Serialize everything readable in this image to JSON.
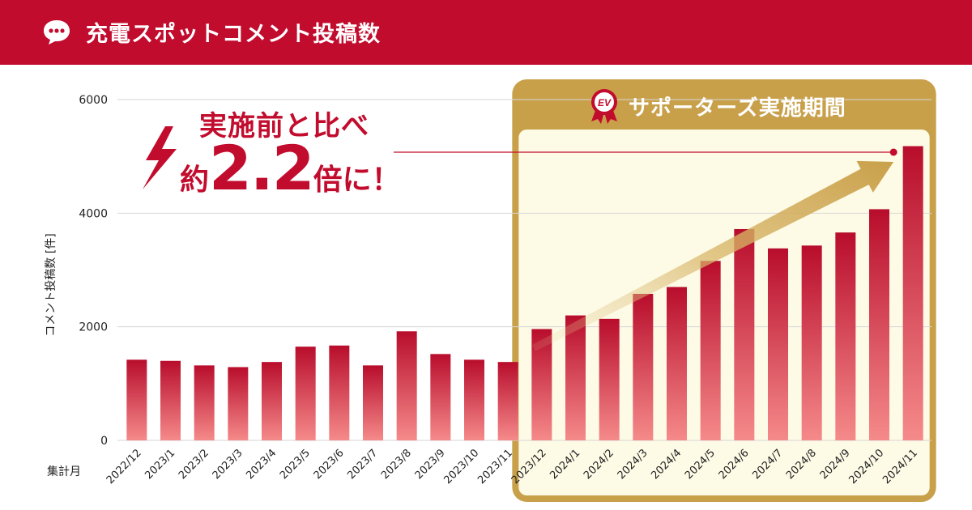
{
  "header": {
    "title": "充電スポットコメント投稿数",
    "icon": "speech-bubble-icon"
  },
  "callout": {
    "line1": "実施前と比べ",
    "prefix": "約",
    "multiplier": "2.2",
    "suffix": "倍に！",
    "icon": "lightning-bolt-icon"
  },
  "highlight": {
    "label": "サポーターズ実施期間",
    "badge_icon": "ev-badge-icon",
    "start_category": "2023/12",
    "end_category": "2024/11"
  },
  "colors": {
    "brand": "#c20c2e",
    "bar_top": "#b80d2c",
    "bar_bottom": "#f58a8a",
    "gold": "#c9a04a",
    "highlight_bg": "#fdfbe6"
  },
  "chart_data": {
    "type": "bar",
    "title": "充電スポットコメント投稿数",
    "ylabel": "コメント投稿数 [件]",
    "xlabel": "集計月",
    "ylim": [
      0,
      6000
    ],
    "yticks": [
      0,
      2000,
      4000,
      6000
    ],
    "grid": true,
    "categories": [
      "2022/12",
      "2023/1",
      "2023/2",
      "2023/3",
      "2023/4",
      "2023/5",
      "2023/6",
      "2023/7",
      "2023/8",
      "2023/9",
      "2023/10",
      "2023/11",
      "2023/12",
      "2024/1",
      "2024/2",
      "2024/3",
      "2024/4",
      "2024/5",
      "2024/6",
      "2024/7",
      "2024/8",
      "2024/9",
      "2024/10",
      "2024/11"
    ],
    "values": [
      1420,
      1400,
      1320,
      1290,
      1380,
      1650,
      1670,
      1320,
      1920,
      1520,
      1420,
      1380,
      1960,
      2200,
      2140,
      2580,
      2700,
      3160,
      3720,
      3380,
      3430,
      3660,
      4070,
      5180
    ]
  }
}
